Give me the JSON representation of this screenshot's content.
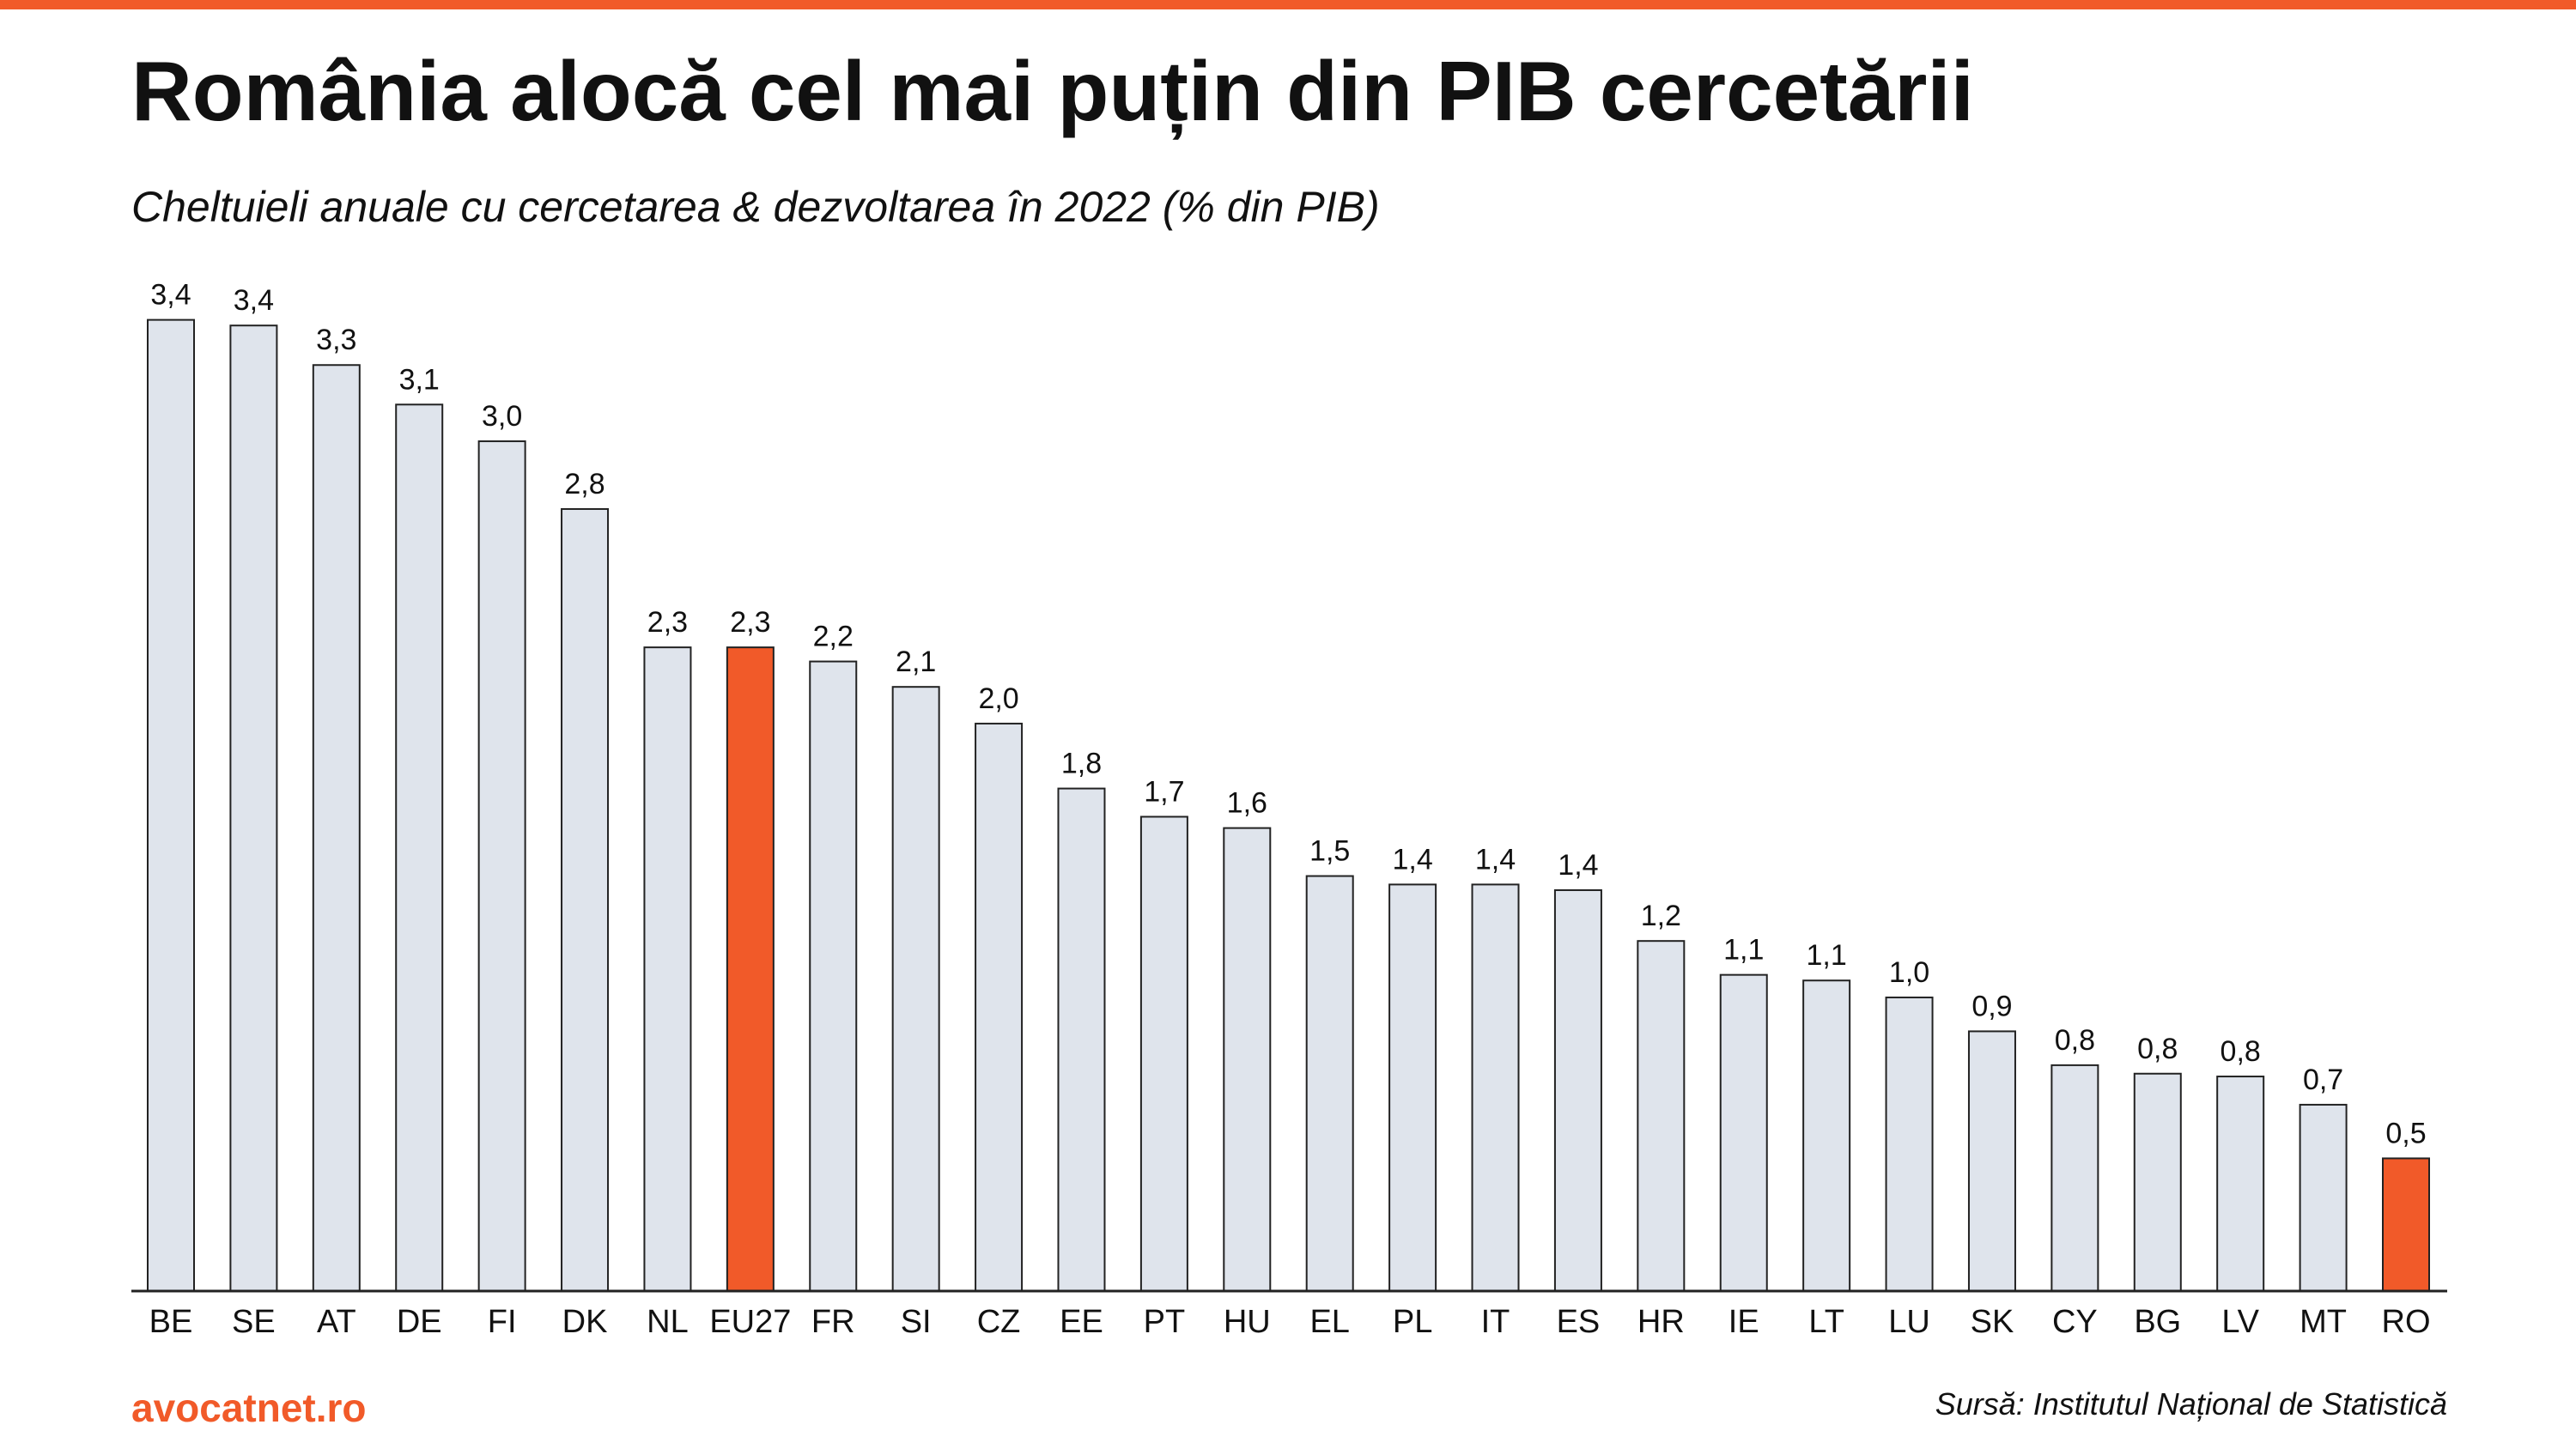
{
  "chart_data": {
    "type": "bar",
    "title": "România alocă cel mai puțin din PIB cercetării",
    "subtitle": "Cheltuieli anuale cu cercetarea & dezvoltarea în 2022 (% din PIB)",
    "categories": [
      "BE",
      "SE",
      "AT",
      "DE",
      "FI",
      "DK",
      "NL",
      "EU27",
      "FR",
      "SI",
      "CZ",
      "EE",
      "PT",
      "HU",
      "EL",
      "PL",
      "IT",
      "ES",
      "HR",
      "IE",
      "LT",
      "LU",
      "SK",
      "CY",
      "BG",
      "LV",
      "MT",
      "RO"
    ],
    "values": [
      3.44,
      3.42,
      3.28,
      3.14,
      3.01,
      2.77,
      2.28,
      2.28,
      2.23,
      2.14,
      2.01,
      1.78,
      1.68,
      1.64,
      1.47,
      1.44,
      1.44,
      1.42,
      1.24,
      1.12,
      1.1,
      1.04,
      0.92,
      0.8,
      0.77,
      0.76,
      0.66,
      0.47
    ],
    "value_labels": [
      "3,4",
      "3,4",
      "3,3",
      "3,1",
      "3,0",
      "2,8",
      "2,3",
      "2,3",
      "2,2",
      "2,1",
      "2,0",
      "1,8",
      "1,7",
      "1,6",
      "1,5",
      "1,4",
      "1,4",
      "1,4",
      "1,2",
      "1,1",
      "1,1",
      "1,0",
      "0,9",
      "0,8",
      "0,8",
      "0,8",
      "0,7",
      "0,5"
    ],
    "colors": [
      "#dfe4ec",
      "#dfe4ec",
      "#dfe4ec",
      "#dfe4ec",
      "#dfe4ec",
      "#dfe4ec",
      "#dfe4ec",
      "#f15a29",
      "#dfe4ec",
      "#dfe4ec",
      "#dfe4ec",
      "#dfe4ec",
      "#dfe4ec",
      "#dfe4ec",
      "#dfe4ec",
      "#dfe4ec",
      "#dfe4ec",
      "#dfe4ec",
      "#dfe4ec",
      "#dfe4ec",
      "#dfe4ec",
      "#dfe4ec",
      "#dfe4ec",
      "#dfe4ec",
      "#dfe4ec",
      "#dfe4ec",
      "#dfe4ec",
      "#f15a29"
    ],
    "ylim": [
      0,
      3.6
    ],
    "brand": "avocatnet.ro",
    "source": "Sursă: Institutul Național de Statistică"
  }
}
